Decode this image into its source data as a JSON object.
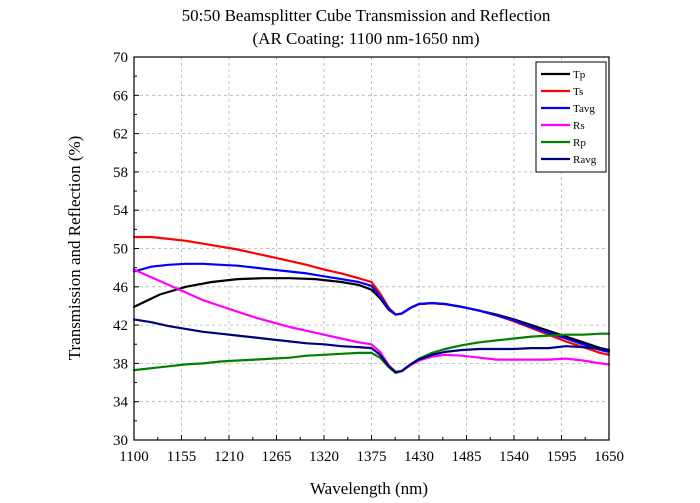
{
  "chart_data": {
    "type": "line",
    "title": "50:50 Beamsplitter Cube  Transmission and Reflection",
    "subtitle": "(AR Coating: 1100 nm-1650 nm)",
    "xlabel": "Wavelength (nm)",
    "ylabel": "Transmission and Reflection (%)",
    "xlim": [
      1100,
      1650
    ],
    "ylim": [
      30,
      70
    ],
    "xticks": [
      1100,
      1155,
      1210,
      1265,
      1320,
      1375,
      1430,
      1485,
      1540,
      1595,
      1650
    ],
    "yticks": [
      30,
      34,
      38,
      42,
      46,
      50,
      54,
      58,
      62,
      66,
      70
    ],
    "grid": true,
    "legend_position": "top-right",
    "series": [
      {
        "name": "Tp",
        "color": "#000000",
        "x": [
          1100,
          1130,
          1160,
          1190,
          1220,
          1250,
          1280,
          1310,
          1340,
          1360,
          1375,
          1385,
          1395,
          1403,
          1410,
          1420,
          1430,
          1445,
          1460,
          1480,
          1500,
          1520,
          1540,
          1560,
          1580,
          1600,
          1620,
          1640,
          1650
        ],
        "values": [
          43.9,
          45.2,
          46.0,
          46.5,
          46.8,
          46.9,
          46.9,
          46.8,
          46.5,
          46.2,
          45.7,
          44.8,
          43.6,
          43.1,
          43.2,
          43.8,
          44.2,
          44.3,
          44.2,
          43.9,
          43.5,
          43.1,
          42.6,
          42.0,
          41.4,
          40.8,
          40.2,
          39.6,
          39.4
        ]
      },
      {
        "name": "Ts",
        "color": "#ff0000",
        "x": [
          1100,
          1120,
          1140,
          1160,
          1180,
          1200,
          1220,
          1240,
          1260,
          1280,
          1300,
          1320,
          1340,
          1360,
          1375,
          1385,
          1395,
          1403,
          1410,
          1420,
          1430,
          1445,
          1460,
          1480,
          1500,
          1520,
          1540,
          1560,
          1580,
          1600,
          1620,
          1640,
          1650
        ],
        "values": [
          51.2,
          51.2,
          51.0,
          50.8,
          50.5,
          50.2,
          49.9,
          49.5,
          49.1,
          48.7,
          48.3,
          47.8,
          47.4,
          46.9,
          46.5,
          45.3,
          43.8,
          43.1,
          43.2,
          43.8,
          44.2,
          44.3,
          44.2,
          43.9,
          43.5,
          43.0,
          42.4,
          41.7,
          41.0,
          40.3,
          39.7,
          39.1,
          38.9
        ]
      },
      {
        "name": "Tavg",
        "color": "#0000ff",
        "x": [
          1100,
          1120,
          1140,
          1160,
          1180,
          1200,
          1220,
          1240,
          1260,
          1280,
          1300,
          1320,
          1340,
          1360,
          1375,
          1385,
          1395,
          1403,
          1410,
          1420,
          1430,
          1445,
          1460,
          1480,
          1500,
          1520,
          1540,
          1560,
          1580,
          1600,
          1620,
          1640,
          1650
        ],
        "values": [
          47.6,
          48.1,
          48.3,
          48.4,
          48.4,
          48.3,
          48.2,
          48.0,
          47.8,
          47.6,
          47.4,
          47.1,
          46.8,
          46.5,
          46.1,
          45.0,
          43.7,
          43.1,
          43.2,
          43.8,
          44.2,
          44.3,
          44.2,
          43.9,
          43.5,
          43.0,
          42.5,
          41.8,
          41.2,
          40.6,
          40.0,
          39.4,
          39.2
        ]
      },
      {
        "name": "Rs",
        "color": "#ff00ff",
        "x": [
          1100,
          1120,
          1140,
          1160,
          1180,
          1200,
          1220,
          1240,
          1260,
          1280,
          1300,
          1320,
          1340,
          1360,
          1375,
          1385,
          1395,
          1403,
          1410,
          1420,
          1430,
          1445,
          1460,
          1480,
          1500,
          1520,
          1540,
          1560,
          1580,
          1600,
          1620,
          1640,
          1650
        ],
        "values": [
          47.8,
          47.0,
          46.2,
          45.4,
          44.6,
          44.0,
          43.4,
          42.8,
          42.3,
          41.8,
          41.4,
          41.0,
          40.6,
          40.2,
          40.0,
          39.2,
          37.8,
          37.1,
          37.2,
          37.8,
          38.3,
          38.7,
          38.9,
          38.8,
          38.6,
          38.4,
          38.4,
          38.4,
          38.4,
          38.5,
          38.3,
          38.0,
          37.9
        ]
      },
      {
        "name": "Rp",
        "color": "#008000",
        "x": [
          1100,
          1120,
          1140,
          1160,
          1180,
          1200,
          1220,
          1240,
          1260,
          1280,
          1300,
          1320,
          1340,
          1360,
          1375,
          1385,
          1395,
          1403,
          1410,
          1420,
          1430,
          1445,
          1460,
          1480,
          1500,
          1520,
          1540,
          1560,
          1580,
          1600,
          1620,
          1640,
          1650
        ],
        "values": [
          37.3,
          37.5,
          37.7,
          37.9,
          38.0,
          38.2,
          38.3,
          38.4,
          38.5,
          38.6,
          38.8,
          38.9,
          39.0,
          39.1,
          39.1,
          38.6,
          37.6,
          37.0,
          37.2,
          37.9,
          38.5,
          39.1,
          39.5,
          39.9,
          40.2,
          40.4,
          40.6,
          40.8,
          40.9,
          41.0,
          41.0,
          41.1,
          41.1
        ]
      },
      {
        "name": "Ravg",
        "color": "#000080",
        "x": [
          1100,
          1120,
          1140,
          1160,
          1180,
          1200,
          1220,
          1240,
          1260,
          1280,
          1300,
          1320,
          1340,
          1360,
          1375,
          1385,
          1395,
          1403,
          1410,
          1420,
          1430,
          1445,
          1460,
          1480,
          1500,
          1520,
          1540,
          1560,
          1580,
          1600,
          1620,
          1640,
          1650
        ],
        "values": [
          42.6,
          42.3,
          41.9,
          41.6,
          41.3,
          41.1,
          40.9,
          40.7,
          40.5,
          40.3,
          40.1,
          40.0,
          39.8,
          39.7,
          39.6,
          38.9,
          37.7,
          37.1,
          37.2,
          37.9,
          38.4,
          38.9,
          39.2,
          39.4,
          39.5,
          39.5,
          39.5,
          39.6,
          39.6,
          39.8,
          39.7,
          39.5,
          39.4
        ]
      }
    ]
  }
}
